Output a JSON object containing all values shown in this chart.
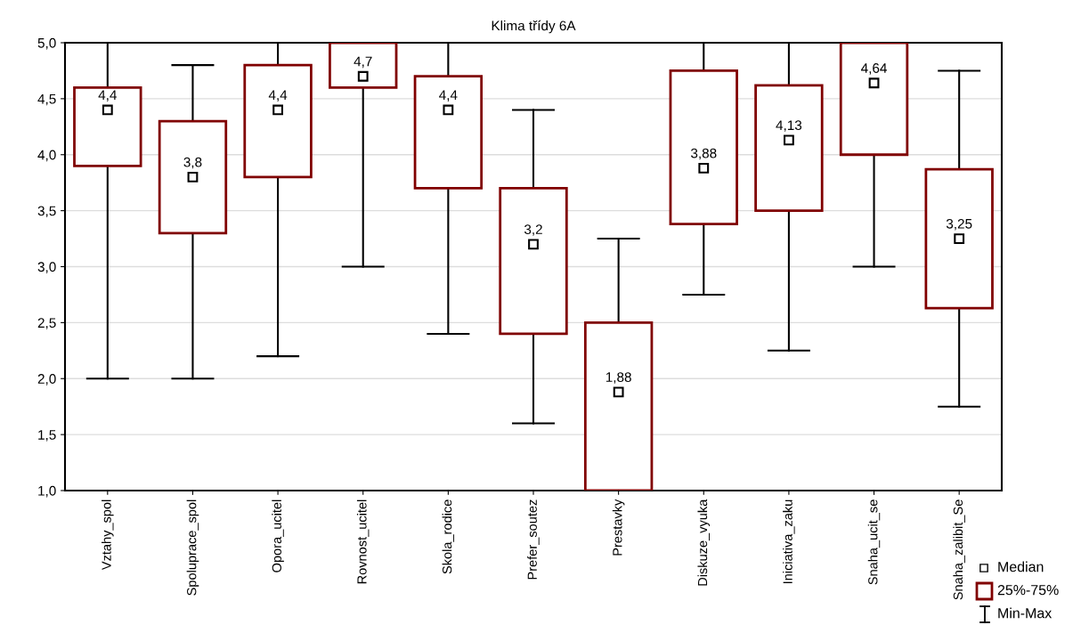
{
  "chart_data": {
    "type": "box",
    "title": "Klima třídy 6A",
    "categories": [
      "Vztahy_spol",
      "Spoluprace_spol",
      "Opora_ucitel",
      "Rovnost_ucitel",
      "Skola_rodice",
      "Prefer_soutez",
      "Prestavky",
      "Diskuze_vyuka",
      "Iniciativa_zaku",
      "Snaha_ucit_se",
      "Snaha_zalibit_Se"
    ],
    "boxes": [
      {
        "low": 2.0,
        "q1": 3.9,
        "median": 4.4,
        "q3": 4.6,
        "high": 5.0
      },
      {
        "low": 2.0,
        "q1": 3.3,
        "median": 3.8,
        "q3": 4.3,
        "high": 4.8
      },
      {
        "low": 2.2,
        "q1": 3.8,
        "median": 4.4,
        "q3": 4.8,
        "high": 5.0
      },
      {
        "low": 3.0,
        "q1": 4.6,
        "median": 4.7,
        "q3": 5.0,
        "high": 5.0
      },
      {
        "low": 2.4,
        "q1": 3.7,
        "median": 4.4,
        "q3": 4.7,
        "high": 5.0
      },
      {
        "low": 1.6,
        "q1": 2.4,
        "median": 3.2,
        "q3": 3.7,
        "high": 4.4
      },
      {
        "low": 1.0,
        "q1": 1.0,
        "median": 1.88,
        "q3": 2.5,
        "high": 3.25
      },
      {
        "low": 2.75,
        "q1": 3.38,
        "median": 3.88,
        "q3": 4.75,
        "high": 5.0
      },
      {
        "low": 2.25,
        "q1": 3.5,
        "median": 4.13,
        "q3": 4.62,
        "high": 5.0
      },
      {
        "low": 3.0,
        "q1": 4.0,
        "median": 4.64,
        "q3": 5.0,
        "high": 5.0
      },
      {
        "low": 1.75,
        "q1": 2.63,
        "median": 3.25,
        "q3": 3.87,
        "high": 4.75
      }
    ],
    "value_labels": [
      "4,4",
      "3,8",
      "4,4",
      "4,7",
      "4,4",
      "3,2",
      "1,88",
      "3,88",
      "4,13",
      "4,64",
      "3,25"
    ],
    "color": "#800000",
    "marker": "square",
    "ylim": [
      1.0,
      5.0
    ],
    "yticks": [
      {
        "value": 1.0,
        "label": "1,0"
      },
      {
        "value": 1.5,
        "label": "1,5"
      },
      {
        "value": 2.0,
        "label": "2,0"
      },
      {
        "value": 2.5,
        "label": "2,5"
      },
      {
        "value": 3.0,
        "label": "3,0"
      },
      {
        "value": 3.5,
        "label": "3,5"
      },
      {
        "value": 4.0,
        "label": "4,0"
      },
      {
        "value": 4.5,
        "label": "4,5"
      },
      {
        "value": 5.0,
        "label": "5,0"
      }
    ],
    "grid": "y",
    "annotations": [
      "Median",
      "25%-75%",
      "Min-Max"
    ]
  }
}
